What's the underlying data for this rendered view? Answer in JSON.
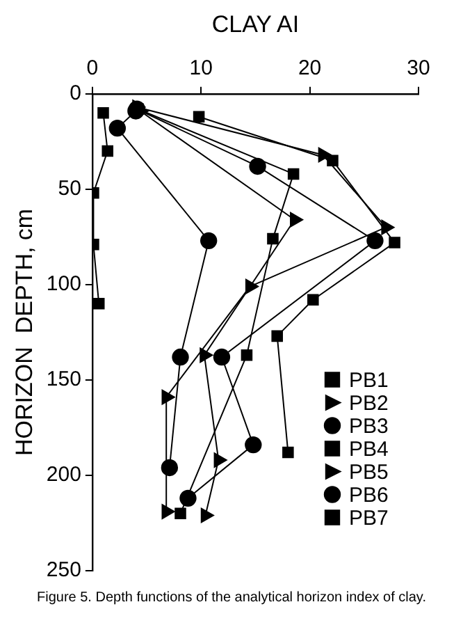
{
  "chart_data": {
    "type": "line",
    "xlabel": "CLAY AI",
    "ylabel": "HORIZON  DEPTH, cm",
    "annotations": [
      "Figure 5. Depth functions of the analytical horizon index of clay."
    ],
    "xlim": [
      0,
      30
    ],
    "xticks": [
      0,
      10,
      20,
      30
    ],
    "ylim": [
      250,
      0
    ],
    "yticks": [
      0,
      50,
      100,
      150,
      200,
      250
    ],
    "grid": false,
    "legend": "bottom right",
    "line_style": "solid",
    "series": [
      {
        "name": "PB1",
        "color": "#000000",
        "marker": "square",
        "x": [
          1.0,
          1.4,
          0.1,
          0.1,
          0.6
        ],
        "values": [
          10,
          30,
          52,
          79,
          110
        ]
      },
      {
        "name": "PB2",
        "color": "#000000",
        "marker": "triangle",
        "x": [
          4.1,
          21.2,
          27.0,
          14.5,
          6.8,
          6.8
        ],
        "values": [
          7,
          32,
          70,
          101,
          159,
          219
        ]
      },
      {
        "name": "PB3",
        "color": "#000000",
        "marker": "circle",
        "x": [
          4.1,
          15.2,
          26.0,
          11.9,
          14.8,
          8.8
        ],
        "values": [
          8,
          38,
          77,
          138,
          184,
          212
        ]
      },
      {
        "name": "PB4",
        "color": "#000000",
        "marker": "square",
        "x": [
          9.8,
          22.1,
          27.8,
          20.3,
          17.0,
          18.0
        ],
        "values": [
          12,
          35,
          78,
          108,
          127,
          188
        ]
      },
      {
        "name": "PB5",
        "color": "#000000",
        "marker": "triangle",
        "x": [
          4.4,
          18.6,
          10.3,
          11.6,
          10.4
        ],
        "values": [
          9,
          66,
          137,
          192,
          221
        ]
      },
      {
        "name": "PB6",
        "color": "#000000",
        "marker": "circle",
        "x": [
          4.0,
          2.3,
          10.7,
          8.1,
          7.1
        ],
        "values": [
          9,
          18,
          77,
          138,
          196
        ]
      },
      {
        "name": "PB7",
        "color": "#000000",
        "marker": "square",
        "x": [
          4.2,
          18.5,
          16.6,
          14.2,
          8.1
        ],
        "values": [
          8,
          42,
          76,
          137,
          220
        ]
      }
    ]
  }
}
